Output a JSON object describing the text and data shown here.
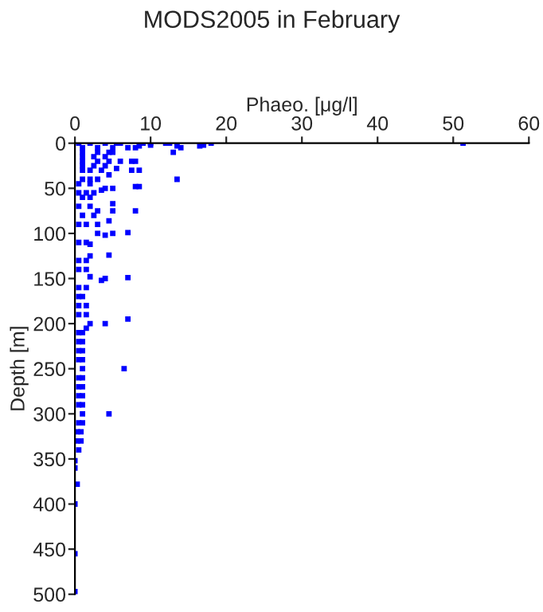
{
  "chart_data": {
    "type": "scatter",
    "title": "MODS2005 in February",
    "xlabel": "Phaeo. [μg/l]",
    "ylabel": "Depth [m]",
    "x": [
      51.3,
      18,
      17,
      16.5,
      14,
      13.5,
      13,
      12.5,
      12,
      10,
      10,
      9,
      8.5,
      8,
      7,
      6,
      13.5,
      7.5,
      8,
      8.5,
      7.5,
      6,
      5.5,
      4.5,
      5,
      8.5,
      8,
      5,
      4,
      3.5,
      5,
      8,
      5,
      3,
      4.5,
      3,
      7,
      5,
      4,
      3,
      2,
      4.5,
      2,
      7,
      4,
      3.5,
      2,
      7,
      4,
      2,
      1.5,
      6.5,
      1,
      4.5,
      1,
      0.5,
      0,
      0,
      0.3,
      0,
      0,
      0,
      0.5,
      2,
      4,
      5.5,
      1,
      3,
      5,
      1,
      3,
      4.5,
      1,
      2.5,
      4,
      1,
      3,
      4.5,
      1,
      2.5,
      4,
      1,
      2,
      3.5,
      1,
      2,
      3,
      0.5,
      2,
      0.5,
      1.5,
      2.5,
      1,
      2,
      0.5,
      2,
      1,
      2.5,
      0.5,
      1.5,
      0.5,
      1.5,
      0.5,
      1.5,
      0.5,
      1.5,
      0.5,
      1.5,
      0.5,
      1,
      0.5,
      1.5,
      0.5,
      1.5,
      0.5,
      1,
      0.5,
      1,
      0.5,
      1,
      0.5,
      1,
      0.5,
      1,
      0.5,
      1,
      0.5,
      1,
      0.5,
      1,
      0.5,
      1,
      0.3,
      0.8,
      0.3,
      0.8
    ],
    "values": [
      0,
      0,
      2,
      3,
      5,
      3,
      10,
      0,
      0,
      0,
      2,
      0,
      3,
      5,
      5,
      0,
      40,
      20,
      20,
      30,
      30,
      20,
      28,
      35,
      10,
      48,
      48,
      50,
      50,
      52,
      67,
      75,
      75,
      75,
      86,
      90,
      99,
      100,
      102,
      100,
      112,
      124,
      125,
      149,
      150,
      152,
      148,
      195,
      200,
      200,
      205,
      250,
      250,
      300,
      300,
      340,
      352,
      360,
      378,
      400,
      455,
      497,
      0,
      0,
      0,
      0,
      5,
      5,
      5,
      10,
      10,
      10,
      15,
      15,
      15,
      20,
      20,
      20,
      25,
      25,
      25,
      30,
      30,
      30,
      40,
      40,
      40,
      45,
      45,
      55,
      55,
      55,
      60,
      60,
      70,
      70,
      80,
      80,
      90,
      90,
      110,
      110,
      130,
      130,
      140,
      140,
      160,
      160,
      170,
      170,
      180,
      180,
      190,
      190,
      210,
      210,
      220,
      220,
      230,
      230,
      240,
      240,
      260,
      260,
      270,
      270,
      280,
      280,
      290,
      290,
      310,
      310,
      320,
      320,
      330,
      330
    ],
    "color": "#0000ff",
    "marker": "square",
    "xlim": [
      0,
      60
    ],
    "xticks": [
      0,
      10,
      20,
      30,
      40,
      50,
      60
    ],
    "ylim": [
      500,
      0
    ],
    "yticks": [
      0,
      50,
      100,
      150,
      200,
      250,
      300,
      350,
      400,
      450,
      500
    ],
    "grid": false,
    "legend": false
  }
}
